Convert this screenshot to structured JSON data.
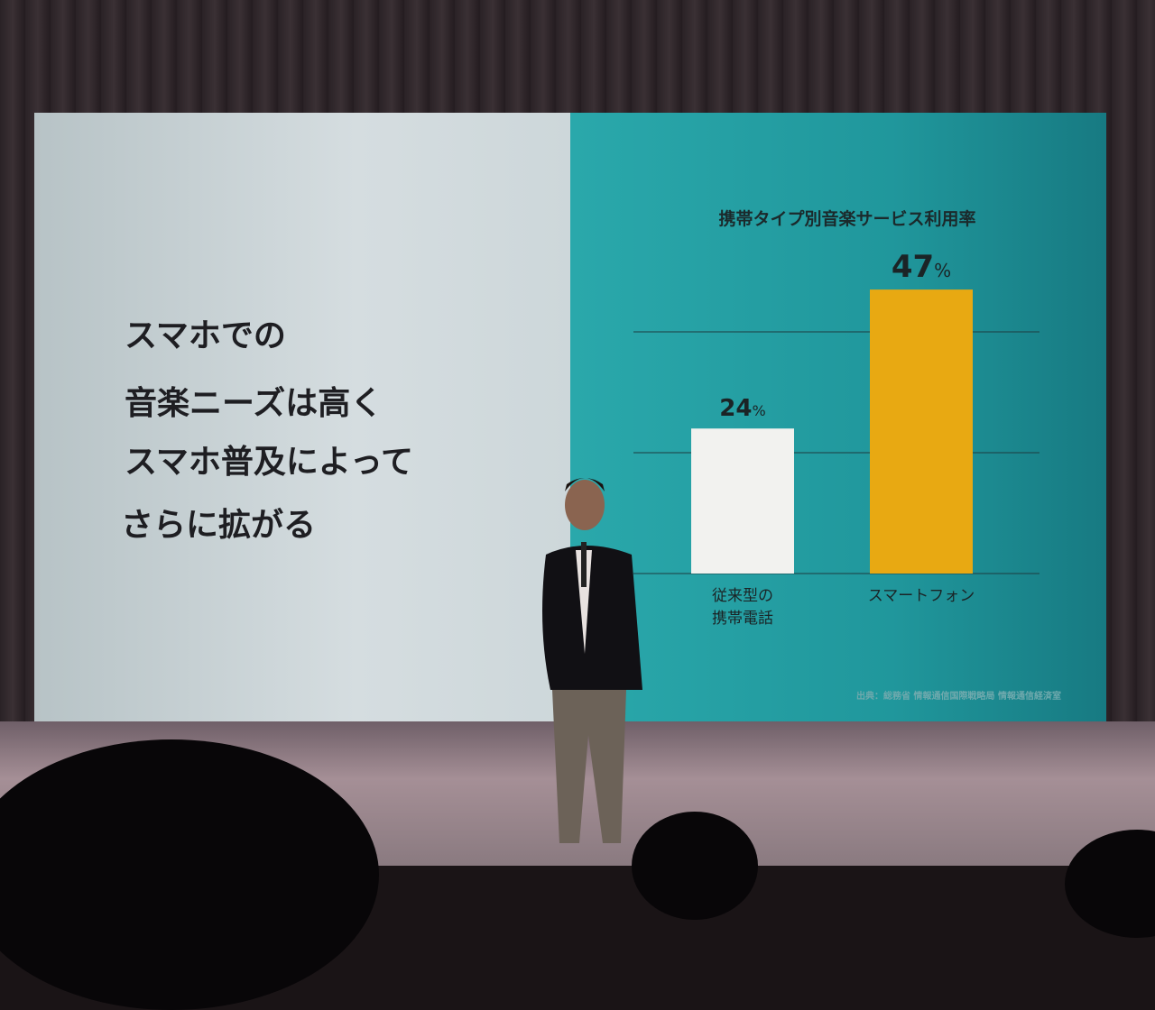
{
  "slide": {
    "message_lines": [
      "スマホでの",
      "音楽ニーズは高く",
      "スマホ普及によって",
      "さらに拡がる"
    ],
    "source": "出典：総務省 情報通信国際戦略局 情報通信経済室"
  },
  "chart_data": {
    "type": "bar",
    "title": "携帯タイプ別音楽サービス利用率",
    "categories": [
      "従来型の\n携帯電話",
      "スマートフォン"
    ],
    "values": [
      24,
      47
    ],
    "data_labels": [
      "24%",
      "47%"
    ],
    "colors": [
      "#f2f2ef",
      "#e8a912"
    ],
    "ylim": [
      0,
      50
    ],
    "grid": true,
    "gridlines": [
      0,
      20,
      40
    ]
  }
}
